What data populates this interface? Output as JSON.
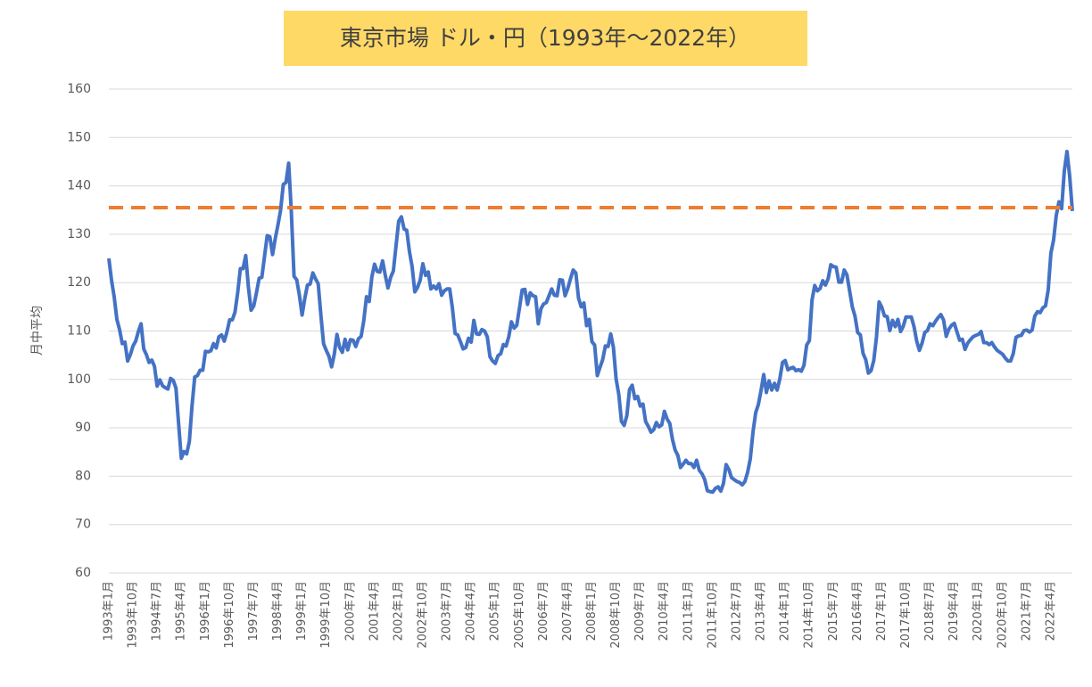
{
  "chart_data": {
    "type": "line",
    "title": "東京市場 ドル・円（1993年～2022年）",
    "y_label": "月中平均",
    "categories": [
      "1993年1月",
      null,
      null,
      null,
      null,
      null,
      null,
      null,
      null,
      "1993年10月",
      null,
      null,
      null,
      null,
      null,
      null,
      null,
      null,
      "1994年7月",
      null,
      null,
      null,
      null,
      null,
      null,
      null,
      null,
      "1995年4月",
      null,
      null,
      null,
      null,
      null,
      null,
      null,
      null,
      "1996年1月",
      null,
      null,
      null,
      null,
      null,
      null,
      null,
      null,
      "1996年10月",
      null,
      null,
      null,
      null,
      null,
      null,
      null,
      null,
      "1997年7月",
      null,
      null,
      null,
      null,
      null,
      null,
      null,
      null,
      "1998年4月",
      null,
      null,
      null,
      null,
      null,
      null,
      null,
      null,
      "1999年1月",
      null,
      null,
      null,
      null,
      null,
      null,
      null,
      null,
      "1999年10月",
      null,
      null,
      null,
      null,
      null,
      null,
      null,
      null,
      "2000年7月",
      null,
      null,
      null,
      null,
      null,
      null,
      null,
      null,
      "2001年4月",
      null,
      null,
      null,
      null,
      null,
      null,
      null,
      null,
      "2002年1月",
      null,
      null,
      null,
      null,
      null,
      null,
      null,
      null,
      "2002年10月",
      null,
      null,
      null,
      null,
      null,
      null,
      null,
      null,
      "2003年7月",
      null,
      null,
      null,
      null,
      null,
      null,
      null,
      null,
      "2004年4月",
      null,
      null,
      null,
      null,
      null,
      null,
      null,
      null,
      "2005年1月",
      null,
      null,
      null,
      null,
      null,
      null,
      null,
      null,
      "2005年10月",
      null,
      null,
      null,
      null,
      null,
      null,
      null,
      null,
      "2006年7月",
      null,
      null,
      null,
      null,
      null,
      null,
      null,
      null,
      "2007年4月",
      null,
      null,
      null,
      null,
      null,
      null,
      null,
      null,
      "2008年1月",
      null,
      null,
      null,
      null,
      null,
      null,
      null,
      null,
      "2008年10月",
      null,
      null,
      null,
      null,
      null,
      null,
      null,
      null,
      "2009年7月",
      null,
      null,
      null,
      null,
      null,
      null,
      null,
      null,
      "2010年4月",
      null,
      null,
      null,
      null,
      null,
      null,
      null,
      null,
      "2011年1月",
      null,
      null,
      null,
      null,
      null,
      null,
      null,
      null,
      "2011年10月",
      null,
      null,
      null,
      null,
      null,
      null,
      null,
      null,
      "2012年7月",
      null,
      null,
      null,
      null,
      null,
      null,
      null,
      null,
      "2013年4月",
      null,
      null,
      null,
      null,
      null,
      null,
      null,
      null,
      "2014年1月",
      null,
      null,
      null,
      null,
      null,
      null,
      null,
      null,
      "2014年10月",
      null,
      null,
      null,
      null,
      null,
      null,
      null,
      null,
      "2015年7月",
      null,
      null,
      null,
      null,
      null,
      null,
      null,
      null,
      "2016年4月",
      null,
      null,
      null,
      null,
      null,
      null,
      null,
      null,
      "2017年1月",
      null,
      null,
      null,
      null,
      null,
      null,
      null,
      null,
      "2017年10月",
      null,
      null,
      null,
      null,
      null,
      null,
      null,
      null,
      "2018年7月",
      null,
      null,
      null,
      null,
      null,
      null,
      null,
      null,
      "2019年4月",
      null,
      null,
      null,
      null,
      null,
      null,
      null,
      null,
      "2020年1月",
      null,
      null,
      null,
      null,
      null,
      null,
      null,
      null,
      "2020年10月",
      null,
      null,
      null,
      null,
      null,
      null,
      null,
      null,
      "2021年7月",
      null,
      null,
      null,
      null,
      null,
      null,
      null,
      null,
      "2022年4月",
      null,
      null,
      null,
      null,
      null,
      null,
      null,
      null
    ],
    "series": [
      {
        "color": "#4472c4",
        "values": [
          125,
          120.5,
          117,
          112.4,
          110.3,
          107.4,
          107.7,
          103.8,
          105.1,
          106.9,
          107.9,
          109.9,
          111.5,
          106.3,
          105.1,
          103.5,
          104,
          102.7,
          98.6,
          99.9,
          98.7,
          98.3,
          98,
          100.2,
          99.8,
          98.2,
          90.8,
          83.7,
          85.1,
          84.6,
          87.2,
          94.6,
          100.5,
          100.8,
          101.9,
          101.9,
          105.8,
          105.7,
          105.9,
          107.4,
          106.5,
          108.8,
          109.2,
          107.9,
          109.8,
          112.3,
          112.3,
          113.9,
          117.9,
          122.9,
          122.9,
          125.6,
          119.1,
          114.3,
          115.2,
          117.9,
          120.9,
          121.1,
          125.4,
          129.7,
          129.5,
          125.8,
          129.1,
          131.9,
          135,
          140.3,
          140.7,
          144.7,
          134.6,
          121.3,
          120.6,
          117.4,
          113.3,
          116.7,
          119.5,
          119.7,
          122,
          120.8,
          119.8,
          113.3,
          107.4,
          106,
          104.8,
          102.6,
          105.2,
          109.3,
          106.6,
          105.6,
          108.3,
          106.1,
          108.2,
          108.1,
          106.8,
          108.4,
          108.9,
          112.2,
          117.1,
          116.1,
          121.2,
          123.8,
          122.3,
          122.2,
          124.5,
          121.5,
          118.9,
          121.1,
          122.4,
          127.6,
          132.7,
          133.6,
          131.1,
          130.8,
          126.4,
          123.3,
          118.1,
          119,
          120.5,
          123.9,
          121.5,
          122.2,
          118.7,
          119.3,
          118.7,
          119.8,
          117.4,
          118.3,
          118.7,
          118.7,
          114.8,
          109.5,
          109.2,
          107.8,
          106.3,
          106.6,
          108.5,
          107.7,
          112.2,
          109.4,
          109.3,
          110.3,
          110,
          108.8,
          104.7,
          103.8,
          103.3,
          104.9,
          105.3,
          107.2,
          106.9,
          108.8,
          111.9,
          110.6,
          111.2,
          114.8,
          118.5,
          118.6,
          115.5,
          117.9,
          117.3,
          117.1,
          111.5,
          114.6,
          115.6,
          115.9,
          117.3,
          118.7,
          117.4,
          117.3,
          120.6,
          120.5,
          117.3,
          118.8,
          120.8,
          122.6,
          122,
          116.8,
          115,
          115.8,
          111.1,
          112.4,
          107.8,
          107.1,
          100.8,
          102.5,
          104.1,
          106.9,
          106.8,
          109.4,
          106.6,
          100.1,
          96.9,
          91.3,
          90.5,
          92.5,
          97.9,
          98.8,
          96,
          96.5,
          94.5,
          94.9,
          91.3,
          90.3,
          89.1,
          89.6,
          91.1,
          90.2,
          90.6,
          93.4,
          91.8,
          90.9,
          87.6,
          85.4,
          84.3,
          81.8,
          82.5,
          83.3,
          82.6,
          82.6,
          81.8,
          83.3,
          81.2,
          80.5,
          79.3,
          77,
          76.8,
          76.7,
          77.5,
          77.8,
          76.9,
          78.5,
          82.4,
          81.4,
          79.7,
          79.3,
          78.9,
          78.7,
          78.2,
          78.9,
          80.8,
          83.6,
          89.1,
          93.1,
          94.8,
          97.7,
          101,
          97.3,
          99.7,
          97.8,
          99.2,
          97.8,
          100.1,
          103.5,
          103.9,
          102,
          102.3,
          102.5,
          101.8,
          102,
          101.7,
          102.9,
          107.1,
          108,
          116.4,
          119.4,
          118.3,
          118.8,
          120.4,
          119.5,
          120.8,
          123.7,
          123.3,
          123.2,
          120.1,
          120.1,
          122.6,
          121.6,
          118.3,
          115,
          113.1,
          109.7,
          109.2,
          105.4,
          104.1,
          101.3,
          101.8,
          103.9,
          108.7,
          116,
          114.9,
          113.1,
          113,
          110.1,
          112.2,
          110.9,
          112.4,
          109.9,
          111,
          112.9,
          112.9,
          112.9,
          110.9,
          107.9,
          106,
          107.5,
          109.7,
          110.1,
          111.5,
          111.1,
          112,
          112.8,
          113.4,
          112.3,
          108.9,
          110.4,
          111.2,
          111.6,
          109.8,
          108.1,
          108.3,
          106.2,
          107.5,
          108.2,
          108.8,
          109.1,
          109.3,
          109.9,
          107.6,
          107.6,
          107.2,
          107.6,
          106.7,
          106,
          105.6,
          105.2,
          104.4,
          103.8,
          103.8,
          105.4,
          108.7,
          109,
          109.1,
          110.1,
          110.2,
          109.8,
          110.2,
          113.1,
          114,
          113.8,
          114.8,
          115.2,
          118.5,
          126.1,
          128.8,
          133.9,
          136.7,
          135.3,
          143.1,
          147.1,
          142,
          134.8
        ]
      }
    ],
    "reference_line": {
      "value": 135.5,
      "color": "#ed7d31"
    },
    "ylim": [
      60,
      160
    ],
    "yticks": [
      60,
      70,
      80,
      90,
      100,
      110,
      120,
      130,
      140,
      150,
      160
    ],
    "grid": true
  }
}
